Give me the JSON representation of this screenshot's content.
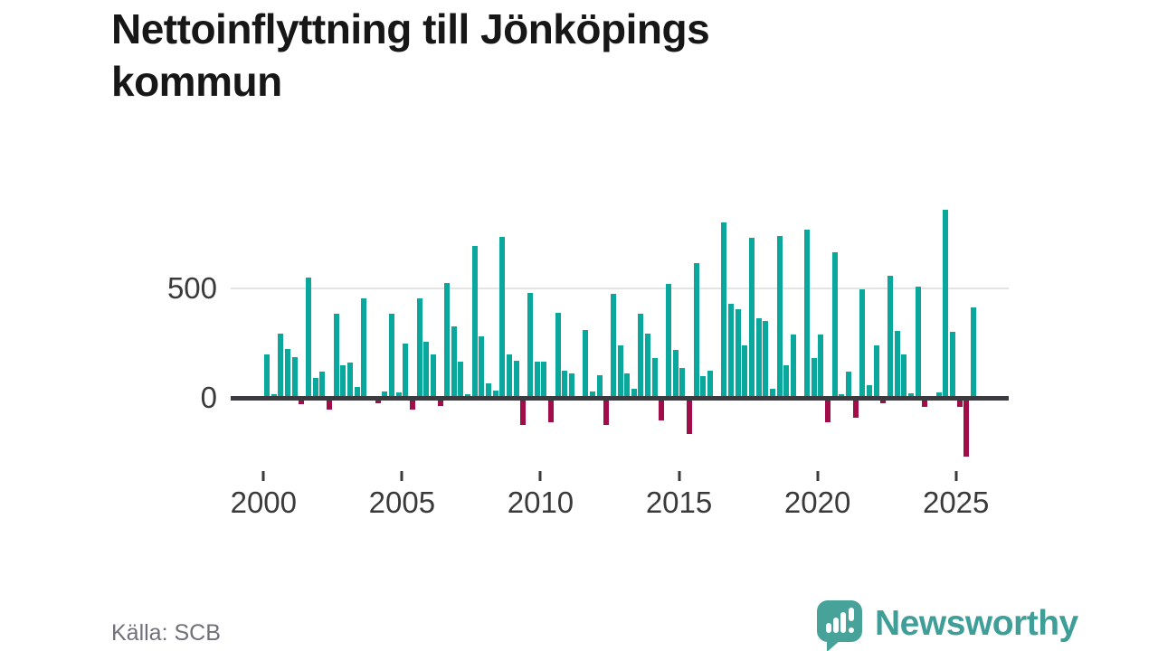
{
  "title": "Nettoinflyttning till Jönköpings kommun",
  "source": "Källa: SCB",
  "brand": {
    "name": "Newsworthy",
    "icon": "speech-bubble-bar-chart-icon",
    "color": "#3f9f98"
  },
  "chart_data": {
    "type": "bar",
    "title": "Nettoinflyttning till Jönköpings kommun",
    "frequency": "quarterly",
    "x_range": "2000-Q1 to 2025-Q3",
    "grid": "horizontal line at 500 only",
    "legend": "none",
    "colors": {
      "positive": "#0aa79c",
      "negative": "#a00d48"
    },
    "y_ticks": [
      {
        "label": "500",
        "value": 500
      },
      {
        "label": "0",
        "value": 0
      }
    ],
    "x_ticks": [
      {
        "label": "2000",
        "year": 2000
      },
      {
        "label": "2005",
        "year": 2005
      },
      {
        "label": "2010",
        "year": 2010
      },
      {
        "label": "2015",
        "year": 2015
      },
      {
        "label": "2020",
        "year": 2020
      },
      {
        "label": "2025",
        "year": 2025
      }
    ],
    "ylim": [
      -300,
      900
    ],
    "series_by_year": [
      {
        "year": 2000,
        "values": [
          200,
          15,
          295,
          225
        ]
      },
      {
        "year": 2001,
        "values": [
          185,
          -30,
          550,
          90
        ]
      },
      {
        "year": 2002,
        "values": [
          120,
          -55,
          385,
          150
        ]
      },
      {
        "year": 2003,
        "values": [
          160,
          50,
          455,
          0
        ]
      },
      {
        "year": 2004,
        "values": [
          -25,
          30,
          385,
          25
        ]
      },
      {
        "year": 2005,
        "values": [
          250,
          -55,
          455,
          255
        ]
      },
      {
        "year": 2006,
        "values": [
          200,
          -35,
          525,
          325
        ]
      },
      {
        "year": 2007,
        "values": [
          165,
          15,
          695,
          280
        ]
      },
      {
        "year": 2008,
        "values": [
          65,
          35,
          735,
          200
        ]
      },
      {
        "year": 2009,
        "values": [
          170,
          -125,
          480,
          165
        ]
      },
      {
        "year": 2010,
        "values": [
          165,
          -110,
          390,
          125
        ]
      },
      {
        "year": 2011,
        "values": [
          110,
          0,
          310,
          30
        ]
      },
      {
        "year": 2012,
        "values": [
          105,
          -125,
          475,
          240
        ]
      },
      {
        "year": 2013,
        "values": [
          110,
          40,
          385,
          295
        ]
      },
      {
        "year": 2014,
        "values": [
          180,
          -105,
          520,
          220
        ]
      },
      {
        "year": 2015,
        "values": [
          135,
          -165,
          615,
          100
        ]
      },
      {
        "year": 2016,
        "values": [
          125,
          0,
          800,
          430
        ]
      },
      {
        "year": 2017,
        "values": [
          405,
          240,
          730,
          365
        ]
      },
      {
        "year": 2018,
        "values": [
          350,
          40,
          740,
          150
        ]
      },
      {
        "year": 2019,
        "values": [
          290,
          0,
          770,
          180
        ]
      },
      {
        "year": 2020,
        "values": [
          290,
          -110,
          665,
          15
        ]
      },
      {
        "year": 2021,
        "values": [
          120,
          -90,
          495,
          60
        ]
      },
      {
        "year": 2022,
        "values": [
          240,
          -25,
          560,
          305
        ]
      },
      {
        "year": 2023,
        "values": [
          200,
          20,
          510,
          -40
        ]
      },
      {
        "year": 2024,
        "values": [
          0,
          25,
          860,
          300
        ]
      },
      {
        "year": 2025,
        "values": [
          -40,
          -270,
          415
        ]
      }
    ]
  }
}
